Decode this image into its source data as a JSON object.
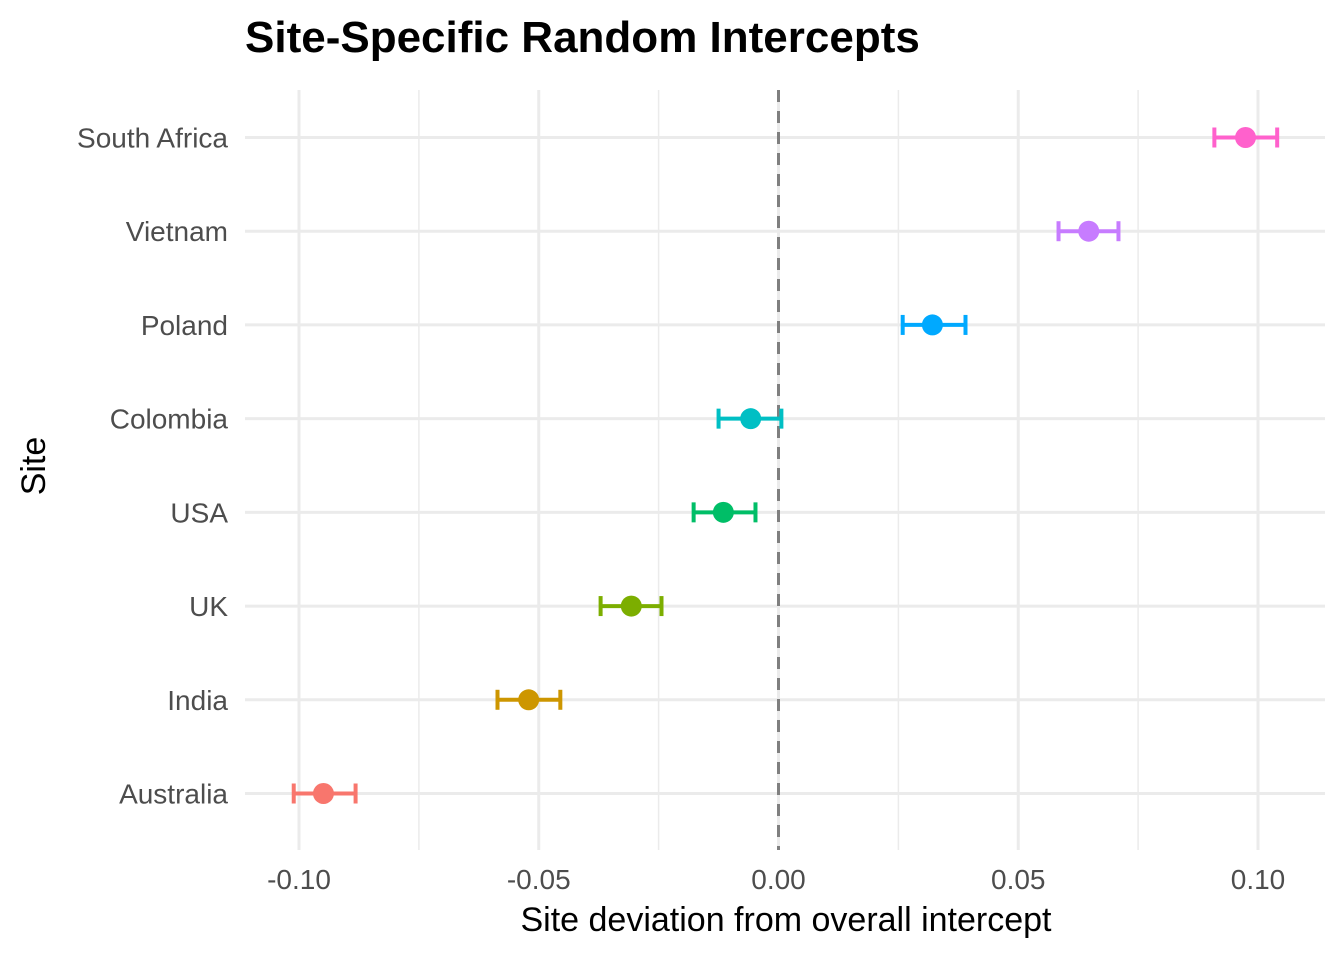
{
  "chart_data": {
    "type": "scatter",
    "subtype": "dot-and-errorbar",
    "title": "Site-Specific Random Intercepts",
    "xlabel": "Site deviation from overall intercept",
    "ylabel": "Site",
    "xlim": [
      -0.112,
      0.115
    ],
    "xticks": [
      -0.1,
      -0.05,
      0.0,
      0.05,
      0.1
    ],
    "xtick_labels": [
      "-0.10",
      "-0.05",
      "0.00",
      "0.05",
      "0.10"
    ],
    "reference_line": {
      "x": 0,
      "style": "dashed",
      "color": "#7f7f7f"
    },
    "grid": true,
    "legend": "none",
    "categories": [
      "Australia",
      "India",
      "UK",
      "USA",
      "Colombia",
      "Poland",
      "Vietnam",
      "South Africa"
    ],
    "series": [
      {
        "name": "Australia",
        "value": -0.0949,
        "lower": -0.1011,
        "upper": -0.0882,
        "color": "#F8766D"
      },
      {
        "name": "India",
        "value": -0.0521,
        "lower": -0.0586,
        "upper": -0.0455,
        "color": "#CD9600"
      },
      {
        "name": "UK",
        "value": -0.0307,
        "lower": -0.0371,
        "upper": -0.0244,
        "color": "#7CAE00"
      },
      {
        "name": "USA",
        "value": -0.0115,
        "lower": -0.0177,
        "upper": -0.0048,
        "color": "#00BE67"
      },
      {
        "name": "Colombia",
        "value": -0.0058,
        "lower": -0.0125,
        "upper": 0.0006,
        "color": "#00BFC4"
      },
      {
        "name": "Poland",
        "value": 0.0321,
        "lower": 0.0259,
        "upper": 0.039,
        "color": "#00A9FF"
      },
      {
        "name": "Vietnam",
        "value": 0.0647,
        "lower": 0.0584,
        "upper": 0.0709,
        "color": "#C77CFF"
      },
      {
        "name": "South Africa",
        "value": 0.0974,
        "lower": 0.0909,
        "upper": 0.104,
        "color": "#FF61CC"
      }
    ]
  }
}
